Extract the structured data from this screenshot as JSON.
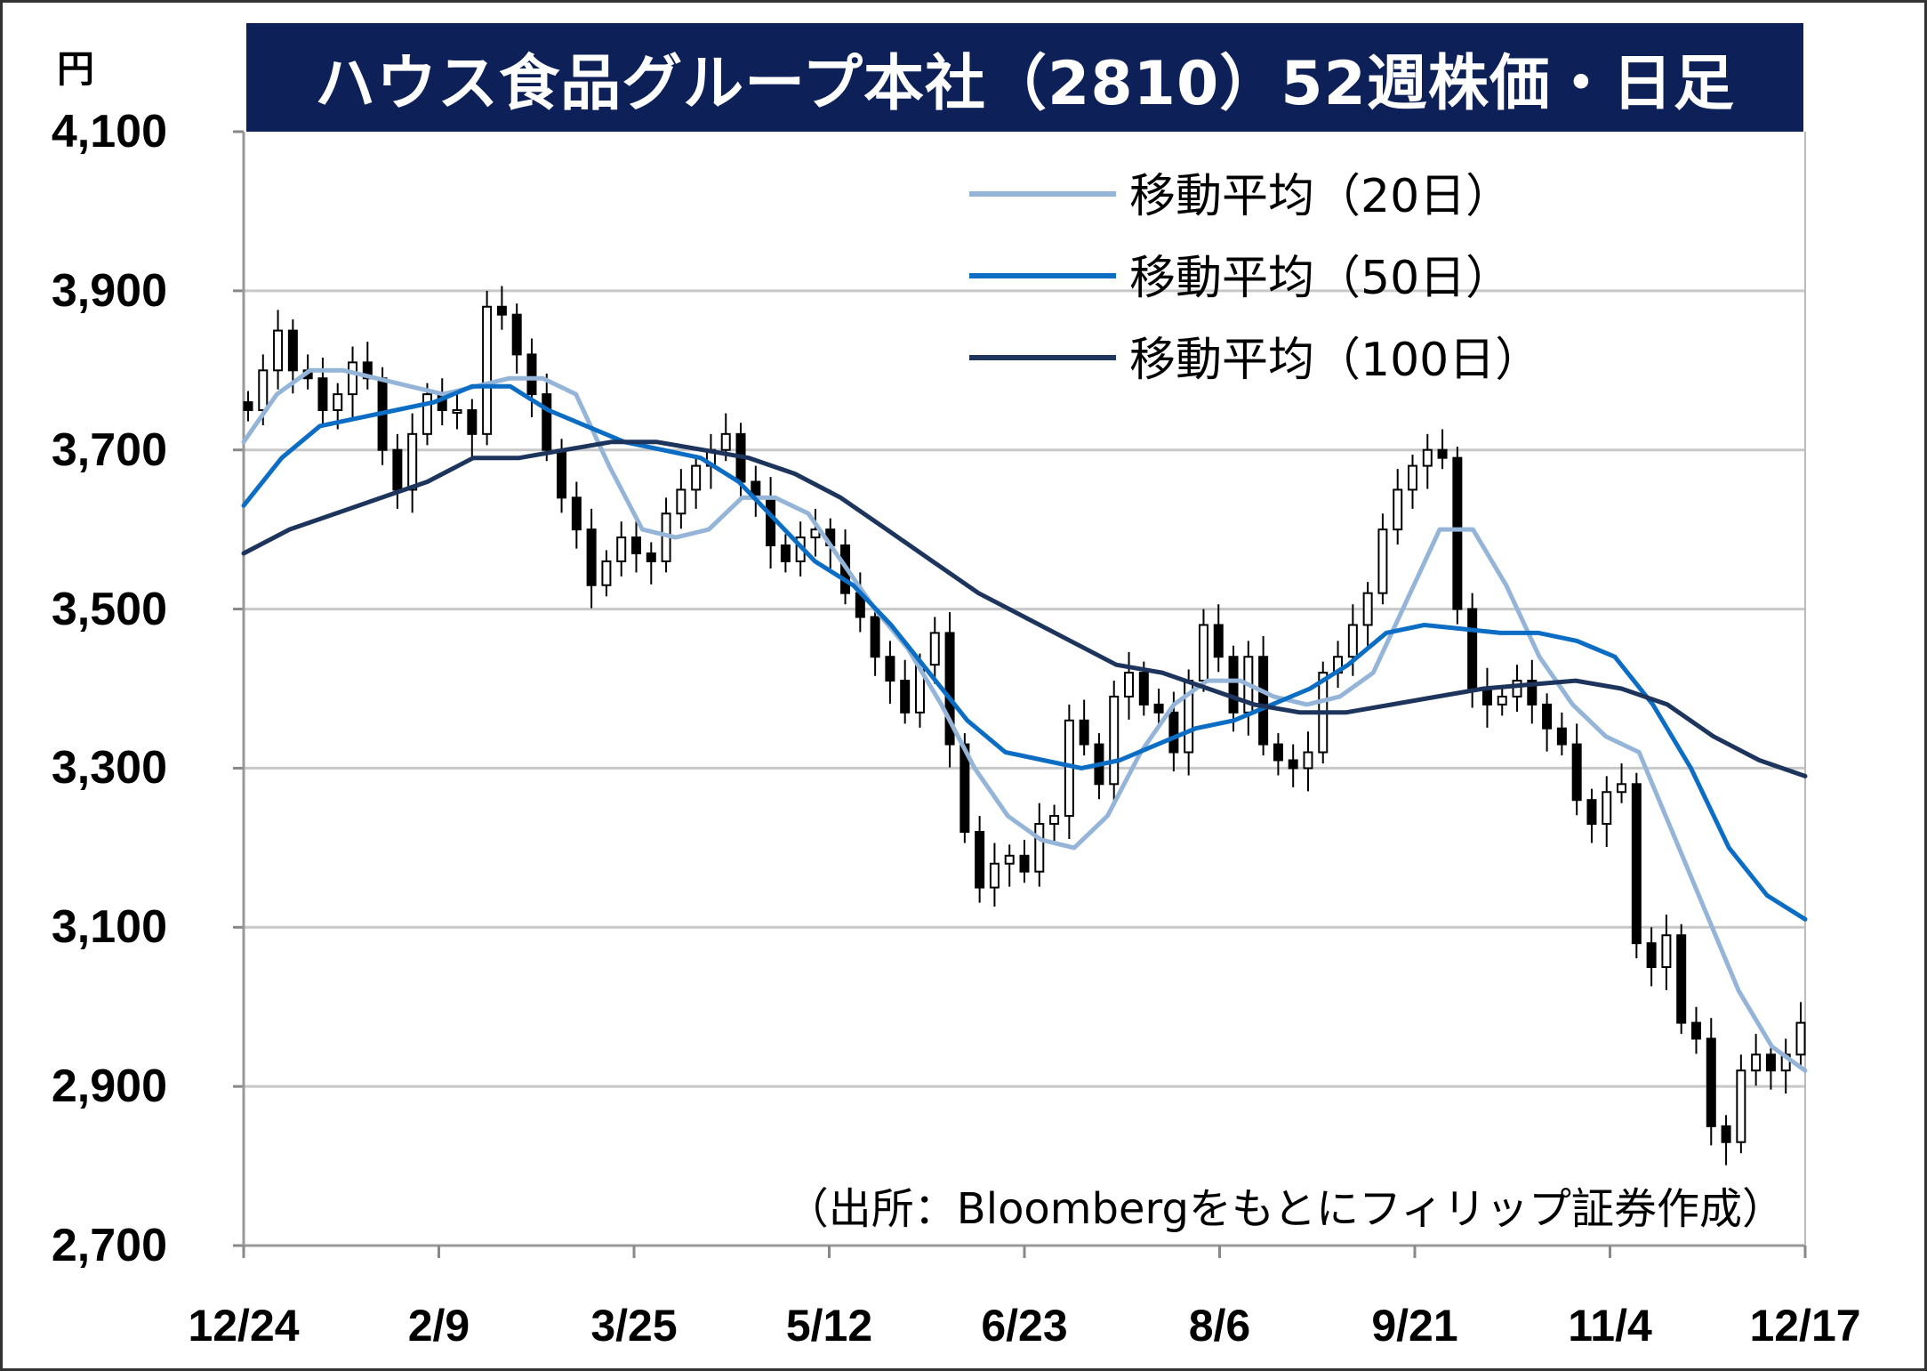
{
  "chart_data": {
    "type": "line",
    "title": "ハウス食品グループ本社（2810）52週株価・日足",
    "unit": "円",
    "ylim": [
      2700,
      4100
    ],
    "yticks": [
      "4,100",
      "3,900",
      "3,700",
      "3,500",
      "3,300",
      "3,100",
      "2,900",
      "2,700"
    ],
    "xticks": [
      "12/24",
      "2/9",
      "3/25",
      "5/12",
      "6/23",
      "8/6",
      "9/21",
      "11/4",
      "12/17"
    ],
    "grid": true,
    "legend_position": "top-right",
    "price_close": [
      3750,
      3800,
      3850,
      3800,
      3790,
      3750,
      3770,
      3810,
      3790,
      3700,
      3650,
      3720,
      3770,
      3750,
      3750,
      3720,
      3880,
      3870,
      3820,
      3770,
      3700,
      3640,
      3600,
      3530,
      3560,
      3590,
      3570,
      3560,
      3620,
      3650,
      3680,
      3700,
      3720,
      3660,
      3640,
      3580,
      3560,
      3590,
      3600,
      3580,
      3520,
      3490,
      3440,
      3410,
      3370,
      3430,
      3470,
      3330,
      3220,
      3150,
      3180,
      3190,
      3170,
      3230,
      3240,
      3360,
      3330,
      3280,
      3390,
      3420,
      3380,
      3370,
      3320,
      3410,
      3480,
      3440,
      3370,
      3440,
      3330,
      3310,
      3300,
      3320,
      3420,
      3440,
      3480,
      3520,
      3600,
      3650,
      3680,
      3700,
      3690,
      3500,
      3400,
      3380,
      3390,
      3410,
      3380,
      3350,
      3330,
      3260,
      3230,
      3270,
      3280,
      3080,
      3050,
      3090,
      2980,
      2960,
      2850,
      2830,
      2920,
      2940,
      2920,
      2940,
      2980
    ],
    "series": [
      {
        "name": "移動平均（20日）",
        "color": "#94b4d8",
        "values": [
          3710,
          3770,
          3800,
          3800,
          3790,
          3780,
          3770,
          3780,
          3790,
          3790,
          3770,
          3680,
          3600,
          3590,
          3600,
          3640,
          3640,
          3620,
          3560,
          3500,
          3450,
          3380,
          3300,
          3240,
          3210,
          3200,
          3240,
          3320,
          3380,
          3410,
          3410,
          3390,
          3380,
          3390,
          3420,
          3510,
          3600,
          3600,
          3530,
          3440,
          3380,
          3340,
          3320,
          3220,
          3120,
          3020,
          2950,
          2920
        ]
      },
      {
        "name": "移動平均（50日）",
        "color": "#0b6dc4",
        "values": [
          3630,
          3690,
          3730,
          3740,
          3750,
          3760,
          3780,
          3780,
          3750,
          3730,
          3710,
          3700,
          3690,
          3660,
          3610,
          3560,
          3530,
          3480,
          3420,
          3360,
          3320,
          3310,
          3300,
          3310,
          3330,
          3350,
          3360,
          3380,
          3400,
          3430,
          3470,
          3480,
          3475,
          3470,
          3470,
          3460,
          3440,
          3380,
          3300,
          3200,
          3140,
          3110
        ]
      },
      {
        "name": "移動平均（100日）",
        "color": "#1d355c",
        "values": [
          3570,
          3600,
          3620,
          3640,
          3660,
          3690,
          3690,
          3700,
          3710,
          3710,
          3700,
          3690,
          3670,
          3640,
          3600,
          3560,
          3520,
          3490,
          3460,
          3430,
          3420,
          3400,
          3380,
          3370,
          3370,
          3380,
          3390,
          3400,
          3405,
          3410,
          3400,
          3380,
          3340,
          3310,
          3290
        ]
      }
    ],
    "source": "（出所：Bloombergをもとにフィリップ証券作成）"
  }
}
